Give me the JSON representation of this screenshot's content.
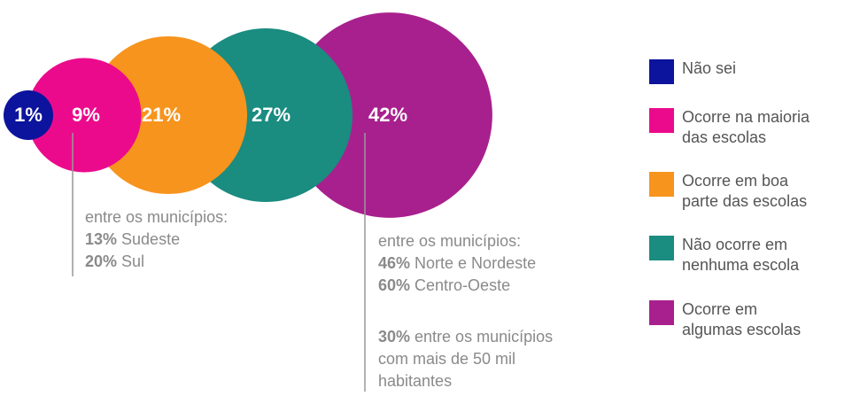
{
  "chart_data": {
    "type": "bubble",
    "categories": [
      "Não sei",
      "Ocorre na maioria\ndas escolas",
      "Ocorre em boa\nparte das escolas",
      "Não ocorre em\nnenhuma escola",
      "Ocorre em\nalgumas escolas"
    ],
    "values": [
      1,
      9,
      21,
      27,
      42
    ],
    "value_labels": [
      "1%",
      "9%",
      "21%",
      "27%",
      "42%"
    ],
    "colors": [
      "#0c139c",
      "#ec0a8c",
      "#f7941d",
      "#1a8c80",
      "#a8208e"
    ],
    "annotations": [
      {
        "heading": "entre os municípios:",
        "items": [
          {
            "value": "13%",
            "text": "Sudeste"
          },
          {
            "value": "20%",
            "text": "Sul"
          }
        ]
      },
      {
        "heading": "entre os municípios:",
        "items": [
          {
            "value": "46%",
            "text": "Norte e Nordeste"
          },
          {
            "value": "60%",
            "text": "Centro-Oeste"
          }
        ],
        "note": {
          "value": "30%",
          "text": "entre os municípios\ncom mais de 50 mil\nhabitantes"
        }
      }
    ]
  }
}
